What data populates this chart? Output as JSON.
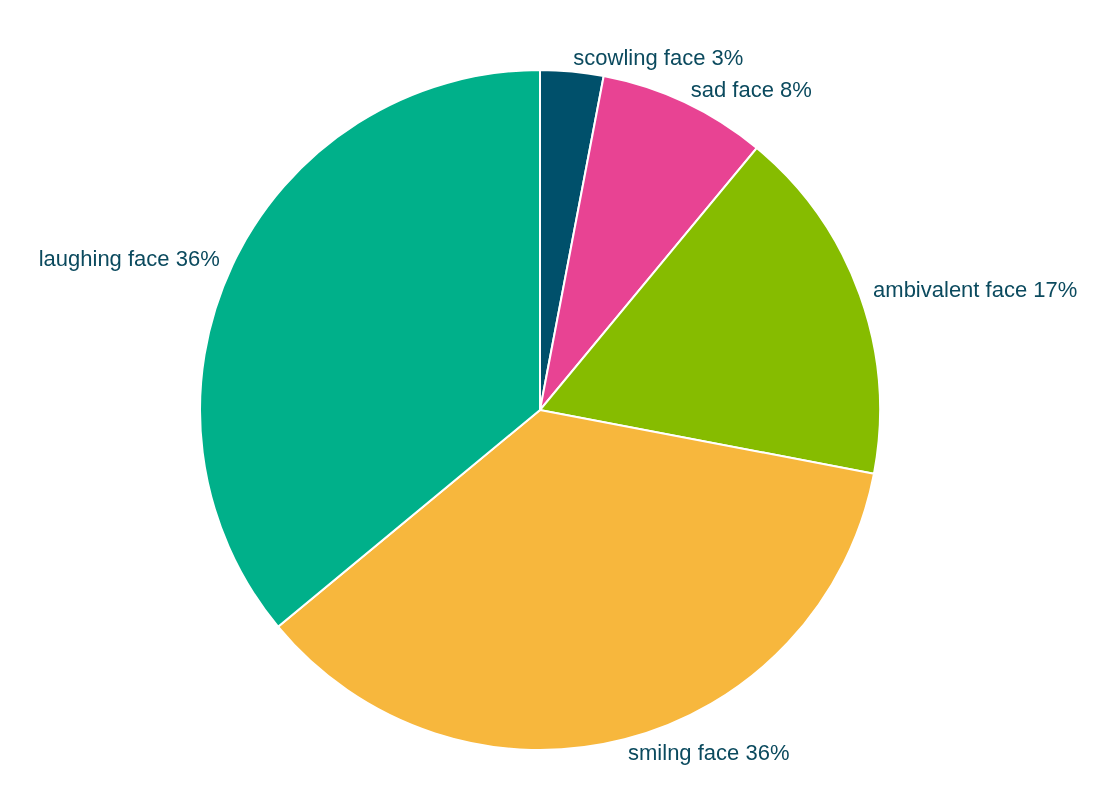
{
  "chart_data": {
    "type": "pie",
    "categories": [
      "scowling face",
      "sad face",
      "ambivalent face",
      "smilng face",
      "laughing face"
    ],
    "values": [
      3,
      8,
      17,
      36,
      36
    ],
    "value_labels": [
      "3%",
      "8%",
      "17%",
      "36%",
      "36%"
    ],
    "colors": [
      "#00506b",
      "#e84393",
      "#86bc00",
      "#f7b73d",
      "#00b08a"
    ]
  }
}
